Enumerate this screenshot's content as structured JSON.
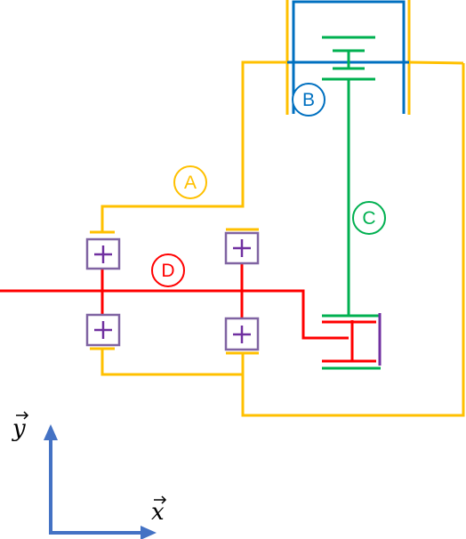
{
  "labels": {
    "A": "A",
    "B": "B",
    "C": "C",
    "D": "D"
  },
  "axes": {
    "x": "x",
    "y": "y"
  },
  "colors": {
    "A": "#FFC000",
    "B": "#0070C0",
    "C": "#00B050",
    "D": "#FF0000",
    "bearing": "#7030A0",
    "axis": "#4472C4"
  }
}
